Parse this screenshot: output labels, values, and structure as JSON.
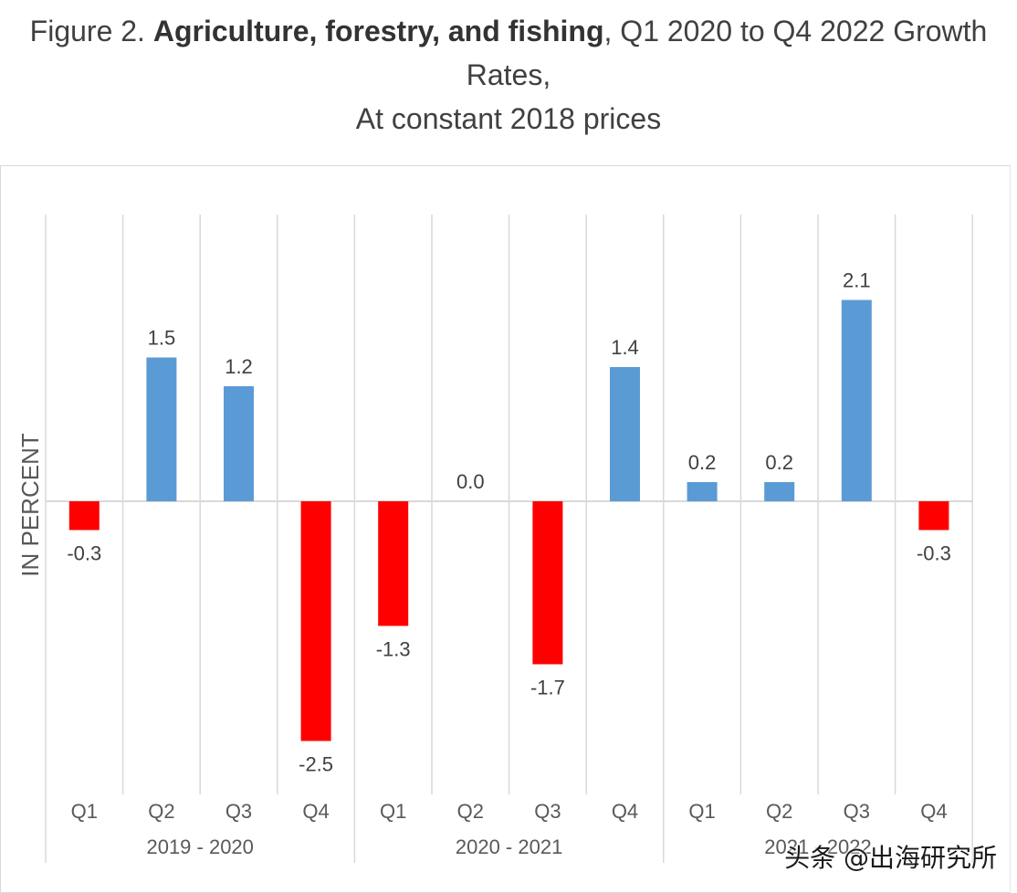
{
  "figure": {
    "prefix": "Figure 2. ",
    "bold": "Agriculture, forestry, and fishing",
    "suffix": ", Q1 2020 to Q4 2022 Growth",
    "line2": "Rates,",
    "line3": "At constant 2018 prices"
  },
  "chart_data": {
    "type": "bar",
    "ylabel": "IN PERCENT",
    "categories": [
      "Q1",
      "Q2",
      "Q3",
      "Q4",
      "Q1",
      "Q2",
      "Q3",
      "Q4",
      "Q1",
      "Q2",
      "Q3",
      "Q4"
    ],
    "groups": [
      {
        "label": "2019 - 2020",
        "quarters": 4
      },
      {
        "label": "2020 - 2021",
        "quarters": 4
      },
      {
        "label": "2021 - 2022",
        "quarters": 4
      }
    ],
    "values": [
      -0.3,
      1.5,
      1.2,
      -2.5,
      -1.3,
      0.0,
      -1.7,
      1.4,
      0.2,
      0.2,
      2.1,
      -0.3
    ],
    "data_labels": [
      "-0.3",
      "1.5",
      "1.2",
      "-2.5",
      "-1.3",
      "0.0",
      "-1.7",
      "1.4",
      "0.2",
      "0.2",
      "2.1",
      "-0.3"
    ],
    "ylim": [
      -2.85,
      3.0
    ],
    "grid": true,
    "colors": {
      "positive": "#5b9bd5",
      "negative": "#ff0000"
    }
  },
  "watermark": "头条 @出海研究所"
}
